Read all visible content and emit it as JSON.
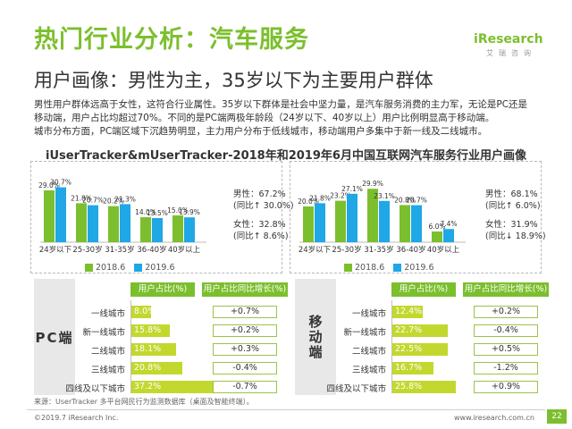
{
  "title": "热门行业分析：汽车服务",
  "subtitle": "用户画像：男性为主，35岁以下为主要用户群体",
  "logo": {
    "main_prefix": "i",
    "main_rest": "Research",
    "sub": "艾瑞咨询"
  },
  "description": [
    "男性用户群体远高于女性，这符合行业属性。35岁以下群体是社会中坚力量，是汽车服务消费的主力军，无论是PC还是",
    "移动端，用户占比均超过70%。不同的是PC端两极年龄段（24岁以下、40岁以上）用户比例明显高于移动端。",
    "城市分布方面，PC端区域下沉趋势明显，主力用户分布于低线城市，移动端用户多集中于新一线及二线城市。"
  ],
  "chart_title": "iUserTracker&mUserTracker-2018年和2019年6月中国互联网汽车服务行业用户画像",
  "colors": {
    "accent": "#7cbf2e",
    "series_2018": "#7cbf2e",
    "series_2019": "#1fa7e6",
    "city_bar": "#c2d82e",
    "up_arrow": "#e03a3a"
  },
  "chart_data": [
    {
      "type": "bar",
      "panel": "PC",
      "categories": [
        "24岁以下",
        "25-30岁",
        "31-35岁",
        "36-40岁",
        "40岁以上"
      ],
      "series": [
        {
          "name": "2018.6",
          "values": [
            29.0,
            21.8,
            20.2,
            14.0,
            15.0
          ],
          "labels": [
            "29.0%",
            "21.8%",
            "20.2%",
            "14.0%",
            "15.0%"
          ]
        },
        {
          "name": "2019.6",
          "values": [
            30.7,
            20.7,
            21.3,
            13.5,
            13.9
          ],
          "labels": [
            "30.7%",
            "20.7%",
            "21.3%",
            "13.5%",
            "13.9%"
          ]
        }
      ],
      "ylim": [
        0,
        35
      ],
      "legend": "bottom"
    },
    {
      "type": "bar",
      "panel": "移动端",
      "categories": [
        "24岁以下",
        "25-30岁",
        "31-35岁",
        "36-40岁",
        "40岁以上"
      ],
      "series": [
        {
          "name": "2018.6",
          "values": [
            20.0,
            23.2,
            29.9,
            20.8,
            6.0
          ],
          "labels": [
            "20.0%",
            "23.2%",
            "29.9%",
            "20.8%",
            "6.0%"
          ]
        },
        {
          "name": "2019.6",
          "values": [
            21.8,
            27.1,
            23.1,
            20.7,
            7.4
          ],
          "labels": [
            "21.8%",
            "27.1%",
            "23.1%",
            "20.7%",
            "7.4%"
          ]
        }
      ],
      "ylim": [
        0,
        35
      ],
      "legend": "bottom"
    },
    {
      "type": "bar",
      "panel": "PC端",
      "orientation": "horizontal",
      "categories": [
        "一线城市",
        "新一线城市",
        "二线城市",
        "三线城市",
        "四线及以下城市"
      ],
      "values": [
        8.0,
        15.8,
        18.1,
        20.8,
        37.2
      ],
      "labels": [
        "8.0%",
        "15.8%",
        "18.1%",
        "20.8%",
        "37.2%"
      ],
      "change": [
        "+0.7%",
        "+0.2%",
        "+0.3%",
        "-0.4%",
        "-0.7%"
      ],
      "xlim": [
        0,
        40
      ]
    },
    {
      "type": "bar",
      "panel": "移动端",
      "orientation": "horizontal",
      "categories": [
        "一线城市",
        "新一线城市",
        "二线城市",
        "三线城市",
        "四线及以下城市"
      ],
      "values": [
        12.4,
        22.7,
        22.5,
        16.7,
        25.8
      ],
      "labels": [
        "12.4%",
        "22.7%",
        "22.5%",
        "16.7%",
        "25.8%"
      ],
      "change": [
        "+0.2%",
        "-0.4%",
        "+0.5%",
        "-1.2%",
        "+0.9%"
      ],
      "xlim": [
        0,
        40
      ]
    }
  ],
  "pc_gender": {
    "male_label": "男性：",
    "male_value": "67.2%",
    "male_change": "(同比↑ 30.0%)",
    "female_label": "女性：",
    "female_value": "32.8%",
    "female_change": "(同比↑ 8.6%)"
  },
  "mobile_gender": {
    "male_label": "男性：",
    "male_value": "68.1%",
    "male_change": "(同比↑ 6.0%)",
    "female_label": "女性：",
    "female_value": "31.9%",
    "female_change": "(同比↓ 18.9%)"
  },
  "legend": {
    "s2018": "2018.6",
    "s2019": "2019.6"
  },
  "table_headers": {
    "share": "用户占比(%)",
    "change": "用户占比同比增长(%)"
  },
  "side_labels": {
    "pc": "PC端",
    "mobile": "移动端"
  },
  "source": "来源：UserTracker 多平台网民行为监测数据库（桌面及智能终端）。",
  "footer": {
    "copyright": "©2019.7 iResearch Inc.",
    "website": "www.iresearch.com.cn",
    "page": "22"
  }
}
